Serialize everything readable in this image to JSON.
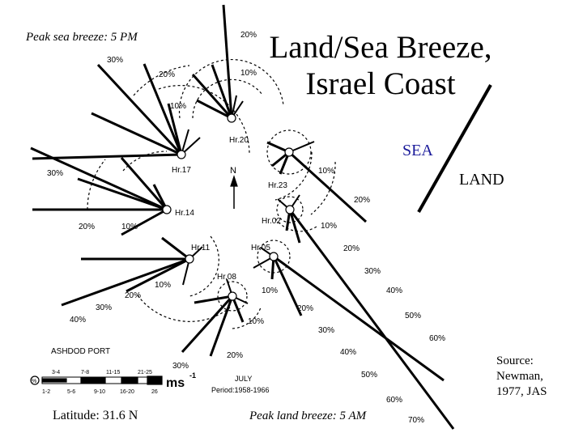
{
  "labels": {
    "peak_sea": "Peak sea breeze: 5 PM",
    "peak_land": "Peak land breeze: 5 AM",
    "title_line1": "Land/Sea Breeze,",
    "title_line2": "Israel Coast",
    "sea": "SEA",
    "land": "LAND",
    "source_line1": "Source:",
    "source_line2": "Newman,",
    "source_line3": "1977, JAS",
    "latitude": "Latitude: 31.6 N"
  },
  "map": {
    "north_label": "N",
    "port_label": "ASHDOD  PORT",
    "month_label": "JULY",
    "period_label": "Period:1958-1966",
    "units_label": "ms",
    "units_exp": "-1",
    "calm_label": "%",
    "scale_top": [
      "3-4",
      "7-8",
      "11-15",
      "21-25"
    ],
    "scale_bottom": [
      "1-2",
      "5-6",
      "9-10",
      "16-20",
      "26"
    ]
  },
  "roses": [
    {
      "hour": "Hr.20",
      "pcts": [
        "20%",
        "10%"
      ]
    },
    {
      "hour": "Hr.17",
      "pcts": [
        "30%",
        "20%",
        "10%"
      ]
    },
    {
      "hour": "Hr.23",
      "pcts": [
        "10%",
        "20%"
      ]
    },
    {
      "hour": "Hr.14",
      "pcts": [
        "30%",
        "20%",
        "10%"
      ]
    },
    {
      "hour": "Hr.02",
      "pcts": [
        "10%",
        "20%",
        "30%",
        "40%",
        "50%",
        "60%",
        "70%"
      ]
    },
    {
      "hour": "Hr.11",
      "pcts": [
        "10%",
        "20%",
        "30%",
        "40%"
      ]
    },
    {
      "hour": "Hr.05",
      "pcts": [
        "10%",
        "20%",
        "30%",
        "40%",
        "50%",
        "60%"
      ]
    },
    {
      "hour": "Hr.08",
      "pcts": [
        "10%",
        "20%",
        "30%"
      ]
    }
  ]
}
